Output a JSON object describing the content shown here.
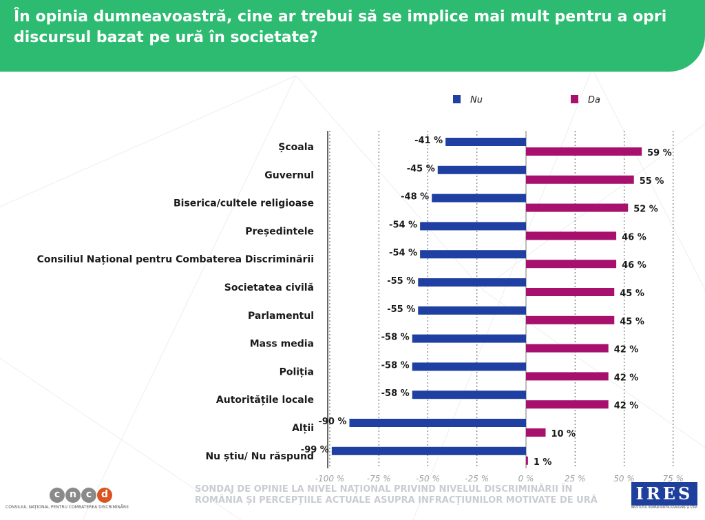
{
  "header": {
    "title": "În opinia dumneavoastră, cine ar trebui să se implice mai mult pentru a opri discursul bazat pe ură în societate?"
  },
  "colors": {
    "header_bg": "#2dbb72",
    "nu": "#1f3fa3",
    "da": "#a8106e"
  },
  "chart_data": {
    "type": "bar",
    "orientation": "horizontal-diverging",
    "categories": [
      "Școala",
      "Guvernul",
      "Biserica/cultele religioase",
      "Președintele",
      "Consiliul Național pentru Combaterea Discriminării",
      "Societatea civilă",
      "Parlamentul",
      "Mass media",
      "Poliția",
      "Autoritățile locale",
      "Alții",
      "Nu știu/ Nu răspund"
    ],
    "series": [
      {
        "name": "Nu",
        "values": [
          -41,
          -45,
          -48,
          -54,
          -54,
          -55,
          -55,
          -58,
          -58,
          -58,
          -90,
          -99
        ]
      },
      {
        "name": "Da",
        "values": [
          59,
          55,
          52,
          46,
          46,
          45,
          45,
          42,
          42,
          42,
          10,
          1
        ]
      }
    ],
    "value_labels": {
      "Nu": [
        "-41 %",
        "-45 %",
        "-48 %",
        "-54 %",
        "-54 %",
        "-55 %",
        "-55 %",
        "-58 %",
        "-58 %",
        "-58 %",
        "-90 %",
        "-99 %"
      ],
      "Da": [
        "59 %",
        "55 %",
        "52 %",
        "46 %",
        "46 %",
        "45 %",
        "45 %",
        "42 %",
        "42 %",
        "42 %",
        "10 %",
        "1 %"
      ]
    },
    "xlim": [
      -100,
      75
    ],
    "x_ticks": [
      -100,
      -75,
      -50,
      -25,
      0,
      25,
      50,
      75
    ],
    "x_tick_labels": [
      "-100 %",
      "-75 %",
      "-50 %",
      "-25 %",
      "0 %",
      "25 %",
      "50 %",
      "75 %"
    ],
    "grid": "vertical-dashed",
    "legend_position": "top"
  },
  "footer": {
    "survey_text": "SONDAJ DE OPINIE LA NIVEL NAȚIONAL PRIVIND NIVELUL DISCRIMINĂRII ÎN ROMÂNIA ȘI PERCEPȚIILE ACTUALE ASUPRA INFRACȚIUNILOR MOTIVATE DE URĂ",
    "cncd_letters": [
      "c",
      "n",
      "c",
      "d"
    ],
    "cncd_colors": [
      "#8a8a8a",
      "#8a8a8a",
      "#8a8a8a",
      "#d9541e"
    ],
    "cncd_full": "CONSILIUL NAȚIONAL PENTRU COMBATEREA DISCRIMINĂRII",
    "ires_logo": "IRES",
    "ires_full": "INSTITUTUL ROMÂN PENTRU EVALUARE ȘI STRATEGIE"
  }
}
